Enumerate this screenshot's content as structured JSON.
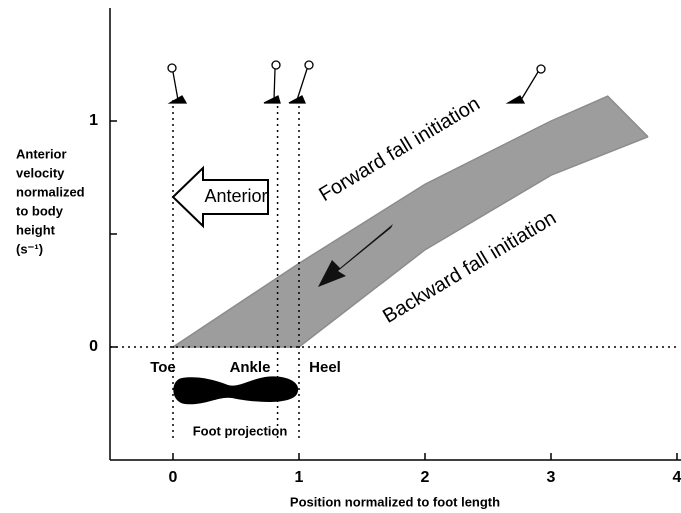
{
  "chart_data": {
    "type": "band",
    "xlabel": "Position normalized to foot length",
    "ylabel": [
      "Anterior",
      "velocity",
      "normalized",
      "to body",
      "height",
      "(s⁻¹)"
    ],
    "series": [
      {
        "name": "Forward fall initiation",
        "color": "#8c8c8c",
        "x": [
          0,
          1,
          2,
          3,
          3.45,
          3.77
        ],
        "values": [
          0,
          0.37,
          0.72,
          1.0,
          1.11,
          0.93
        ]
      },
      {
        "name": "Backward fall initiation",
        "color": "#8c8c8c",
        "x": [
          0,
          1,
          2,
          3,
          3.77
        ],
        "values": [
          0,
          0,
          0.43,
          0.76,
          0.93
        ]
      }
    ],
    "xlim": [
      -0.5,
      4
    ],
    "ylim": [
      -0.5,
      1.5
    ],
    "xticks": [
      0,
      1,
      2,
      3,
      4
    ],
    "yticks": [
      0,
      1
    ],
    "yticks_minor": [
      0.5
    ],
    "reference_lines": {
      "x": [
        0,
        0.83,
        1
      ],
      "y": [
        0
      ]
    },
    "annotations": {
      "arrow": "Anterior",
      "toe": "Toe",
      "ankle": "Ankle",
      "heel": "Heel",
      "foot": "Foot projection"
    }
  }
}
